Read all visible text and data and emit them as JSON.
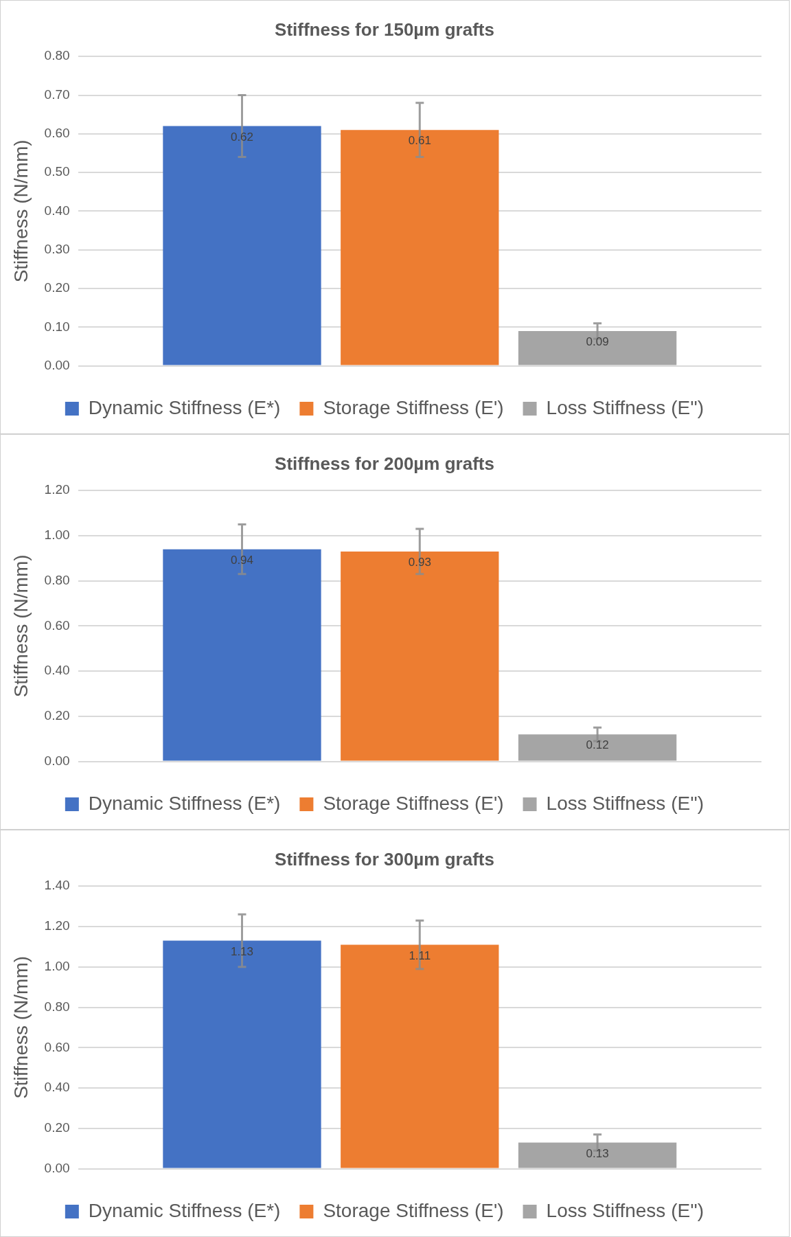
{
  "chart_data": [
    {
      "type": "bar",
      "title": "Stiffness for 150µm grafts",
      "ylabel": "Stiffness (N/mm)",
      "categories": [
        null
      ],
      "ylim": [
        0,
        0.8
      ],
      "yticks": [
        {
          "value": 0,
          "label": "0.00"
        },
        {
          "value": 0.1,
          "label": "0.10"
        },
        {
          "value": 0.2,
          "label": "0.20"
        },
        {
          "value": 0.3,
          "label": "0.30"
        },
        {
          "value": 0.4,
          "label": "0.40"
        },
        {
          "value": 0.5,
          "label": "0.50"
        },
        {
          "value": 0.6,
          "label": "0.60"
        },
        {
          "value": 0.7,
          "label": "0.70"
        },
        {
          "value": 0.8,
          "label": "0.80"
        }
      ],
      "grid": "y",
      "legend": "bottom",
      "data_labels": true,
      "series": [
        {
          "name": "Dynamic Stiffness (E*)",
          "color": "#4472c4",
          "values": [
            0.62
          ],
          "errors": [
            0.08
          ]
        },
        {
          "name": "Storage Stiffness (E')",
          "color": "#ed7d31",
          "values": [
            0.61
          ],
          "errors": [
            0.07
          ]
        },
        {
          "name": "Loss Stiffness (E'')",
          "color": "#a5a5a5",
          "values": [
            0.09
          ],
          "errors": [
            0.02
          ]
        }
      ]
    },
    {
      "type": "bar",
      "title": "Stiffness for 200µm grafts",
      "ylabel": "Stiffness (N/mm)",
      "categories": [
        null
      ],
      "ylim": [
        0,
        1.2
      ],
      "yticks": [
        {
          "value": 0,
          "label": "0.00"
        },
        {
          "value": 0.2,
          "label": "0.20"
        },
        {
          "value": 0.4,
          "label": "0.40"
        },
        {
          "value": 0.6,
          "label": "0.60"
        },
        {
          "value": 0.8,
          "label": "0.80"
        },
        {
          "value": 1.0,
          "label": "1.00"
        },
        {
          "value": 1.2,
          "label": "1.20"
        }
      ],
      "grid": "y",
      "legend": "bottom",
      "data_labels": true,
      "series": [
        {
          "name": "Dynamic Stiffness (E*)",
          "color": "#4472c4",
          "values": [
            0.94
          ],
          "errors": [
            0.11
          ]
        },
        {
          "name": "Storage Stiffness (E')",
          "color": "#ed7d31",
          "values": [
            0.93
          ],
          "errors": [
            0.1
          ]
        },
        {
          "name": "Loss Stiffness (E'')",
          "color": "#a5a5a5",
          "values": [
            0.12
          ],
          "errors": [
            0.03
          ]
        }
      ]
    },
    {
      "type": "bar",
      "title": "Stiffness for 300µm grafts",
      "ylabel": "Stiffness (N/mm)",
      "categories": [
        null
      ],
      "ylim": [
        0,
        1.4
      ],
      "yticks": [
        {
          "value": 0,
          "label": "0.00"
        },
        {
          "value": 0.2,
          "label": "0.20"
        },
        {
          "value": 0.4,
          "label": "0.40"
        },
        {
          "value": 0.6,
          "label": "0.60"
        },
        {
          "value": 0.8,
          "label": "0.80"
        },
        {
          "value": 1.0,
          "label": "1.00"
        },
        {
          "value": 1.2,
          "label": "1.20"
        },
        {
          "value": 1.4,
          "label": "1.40"
        }
      ],
      "grid": "y",
      "legend": "bottom",
      "data_labels": true,
      "series": [
        {
          "name": "Dynamic Stiffness (E*)",
          "color": "#4472c4",
          "values": [
            1.13
          ],
          "errors": [
            0.13
          ]
        },
        {
          "name": "Storage Stiffness (E')",
          "color": "#ed7d31",
          "values": [
            1.11
          ],
          "errors": [
            0.12
          ]
        },
        {
          "name": "Loss Stiffness (E'')",
          "color": "#a5a5a5",
          "values": [
            0.13
          ],
          "errors": [
            0.04
          ]
        }
      ]
    }
  ]
}
